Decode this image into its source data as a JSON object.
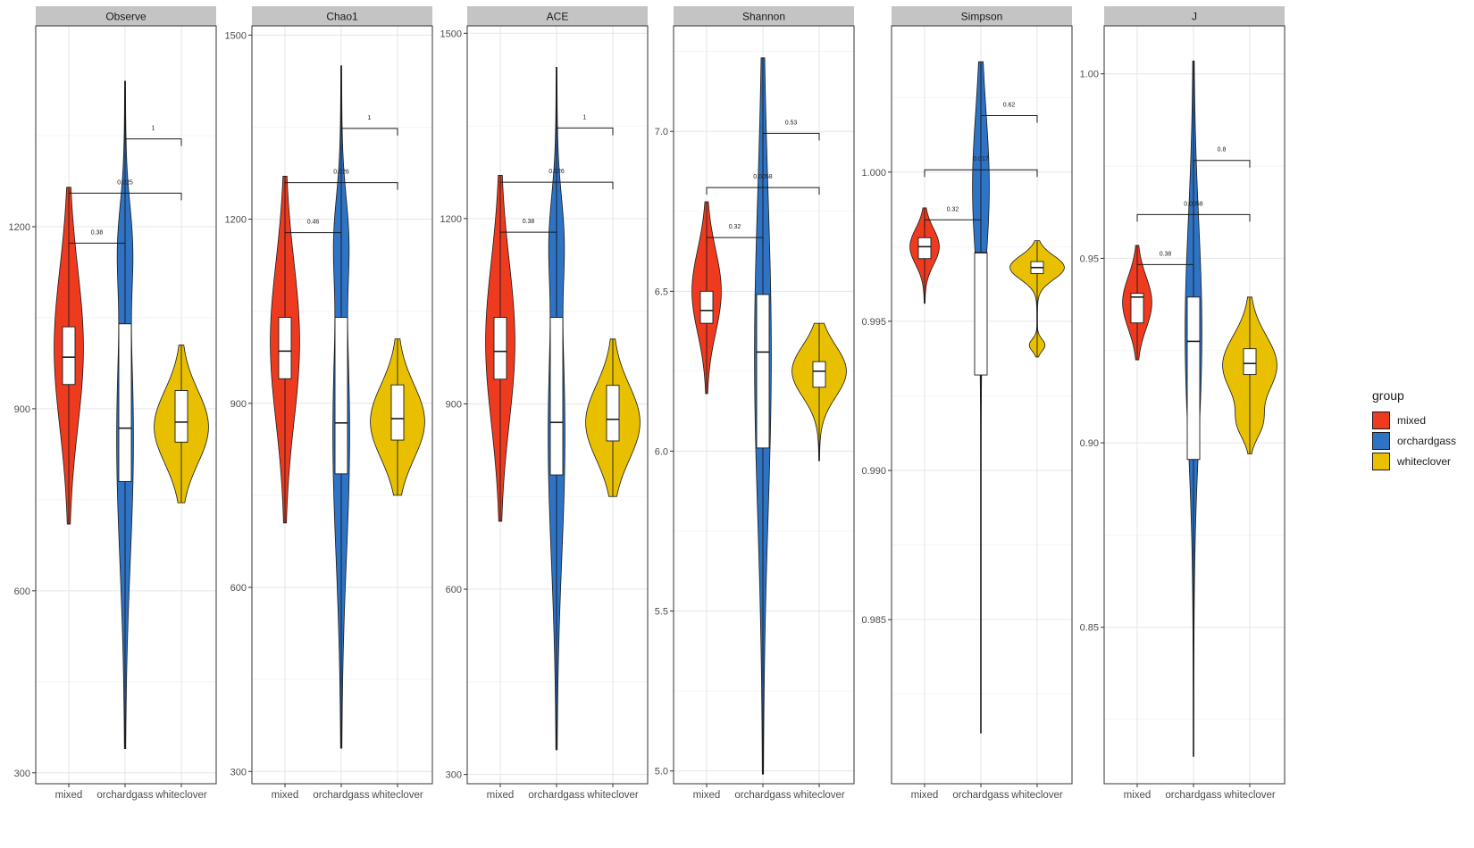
{
  "chart_data": {
    "type": "violin",
    "groups": [
      "mixed",
      "orchardgass",
      "whiteclover"
    ],
    "colors": {
      "mixed": "#EE3B20",
      "orchardgass": "#2E73C4",
      "whiteclover": "#E8C000"
    },
    "legend": {
      "title": "group",
      "placement": "right"
    },
    "grid": true,
    "panels": [
      {
        "title": "Observe",
        "ylim": [
          282,
          1531
        ],
        "yticks": [
          300,
          600,
          900,
          1200
        ],
        "ytick_labels": [
          "300",
          "600",
          "900",
          "1200"
        ],
        "series": [
          {
            "group": "mixed",
            "min": 710,
            "q1": 940,
            "median": 985,
            "q3": 1035,
            "max": 1265,
            "bulges": [
              {
                "y": 1000,
                "w": 1.0,
                "s": 130
              }
            ]
          },
          {
            "group": "orchardgass",
            "min": 340,
            "q1": 780,
            "median": 868,
            "q3": 1040,
            "max": 1440,
            "bulges": [
              {
                "y": 850,
                "w": 0.55,
                "s": 200
              },
              {
                "y": 1170,
                "w": 0.35,
                "s": 70
              }
            ]
          },
          {
            "group": "whiteclover",
            "min": 745,
            "q1": 845,
            "median": 878,
            "q3": 930,
            "max": 1005,
            "bulges": [
              {
                "y": 870,
                "w": 1.0,
                "s": 60
              }
            ]
          }
        ],
        "comparisons": [
          {
            "from": "mixed",
            "to": "orchardgass",
            "label": "0.38"
          },
          {
            "from": "mixed",
            "to": "whiteclover",
            "label": "0.025"
          },
          {
            "from": "orchardgass",
            "to": "whiteclover",
            "label": "1"
          }
        ]
      },
      {
        "title": "Chao1",
        "ylim": [
          280,
          1515
        ],
        "yticks": [
          300,
          600,
          900,
          1200,
          1500
        ],
        "ytick_labels": [
          "300",
          "600",
          "900",
          "1200",
          "1500"
        ],
        "series": [
          {
            "group": "mixed",
            "min": 705,
            "q1": 940,
            "median": 985,
            "q3": 1040,
            "max": 1270,
            "bulges": [
              {
                "y": 1000,
                "w": 1.0,
                "s": 130
              }
            ]
          },
          {
            "group": "orchardgass",
            "min": 338,
            "q1": 785,
            "median": 868,
            "q3": 1040,
            "max": 1450,
            "bulges": [
              {
                "y": 850,
                "w": 0.55,
                "s": 200
              },
              {
                "y": 1170,
                "w": 0.35,
                "s": 70
              }
            ]
          },
          {
            "group": "whiteclover",
            "min": 750,
            "q1": 840,
            "median": 875,
            "q3": 930,
            "max": 1005,
            "bulges": [
              {
                "y": 870,
                "w": 1.0,
                "s": 60
              }
            ]
          }
        ],
        "comparisons": [
          {
            "from": "mixed",
            "to": "orchardgass",
            "label": "0.46"
          },
          {
            "from": "mixed",
            "to": "whiteclover",
            "label": "0.026"
          },
          {
            "from": "orchardgass",
            "to": "whiteclover",
            "label": "1"
          }
        ]
      },
      {
        "title": "ACE",
        "ylim": [
          285,
          1512
        ],
        "yticks": [
          300,
          600,
          900,
          1200,
          1500
        ],
        "ytick_labels": [
          "300",
          "600",
          "900",
          "1200",
          "1500"
        ],
        "series": [
          {
            "group": "mixed",
            "min": 710,
            "q1": 940,
            "median": 985,
            "q3": 1040,
            "max": 1270,
            "bulges": [
              {
                "y": 1000,
                "w": 1.0,
                "s": 130
              }
            ]
          },
          {
            "group": "orchardgass",
            "min": 340,
            "q1": 785,
            "median": 870,
            "q3": 1040,
            "max": 1445,
            "bulges": [
              {
                "y": 850,
                "w": 0.55,
                "s": 200
              },
              {
                "y": 1170,
                "w": 0.35,
                "s": 70
              }
            ]
          },
          {
            "group": "whiteclover",
            "min": 750,
            "q1": 840,
            "median": 875,
            "q3": 930,
            "max": 1005,
            "bulges": [
              {
                "y": 870,
                "w": 1.0,
                "s": 60
              }
            ]
          }
        ],
        "comparisons": [
          {
            "from": "mixed",
            "to": "orchardgass",
            "label": "0.38"
          },
          {
            "from": "mixed",
            "to": "whiteclover",
            "label": "0.026"
          },
          {
            "from": "orchardgass",
            "to": "whiteclover",
            "label": "1"
          }
        ]
      },
      {
        "title": "Shannon",
        "ylim": [
          4.96,
          7.33
        ],
        "yticks": [
          5.0,
          5.5,
          6.0,
          6.5,
          7.0
        ],
        "ytick_labels": [
          "5.0",
          "5.5",
          "6.0",
          "6.5",
          "7.0"
        ],
        "series": [
          {
            "group": "mixed",
            "min": 6.18,
            "q1": 6.4,
            "median": 6.44,
            "q3": 6.5,
            "max": 6.78,
            "bulges": [
              {
                "y": 6.5,
                "w": 1.0,
                "s": 0.13
              }
            ]
          },
          {
            "group": "orchardgass",
            "min": 4.99,
            "q1": 6.01,
            "median": 6.31,
            "q3": 6.49,
            "max": 7.23,
            "bulges": [
              {
                "y": 6.3,
                "w": 0.18,
                "s": 0.5
              }
            ]
          },
          {
            "group": "whiteclover",
            "min": 5.97,
            "q1": 6.2,
            "median": 6.25,
            "q3": 6.28,
            "max": 6.4,
            "bulges": [
              {
                "y": 6.25,
                "w": 1.0,
                "s": 0.08
              }
            ]
          }
        ],
        "comparisons": [
          {
            "from": "mixed",
            "to": "orchardgass",
            "label": "0.32"
          },
          {
            "from": "mixed",
            "to": "whiteclover",
            "label": "0.0058"
          },
          {
            "from": "orchardgass",
            "to": "whiteclover",
            "label": "0.53"
          }
        ]
      },
      {
        "title": "Simpson",
        "ylim": [
          0.9795,
          1.0049
        ],
        "yticks": [
          0.985,
          0.99,
          0.995,
          1.0
        ],
        "ytick_labels": [
          "0.985",
          "0.990",
          "0.995",
          "1.000"
        ],
        "series": [
          {
            "group": "mixed",
            "min": 0.9956,
            "q1": 0.9971,
            "median": 0.9975,
            "q3": 0.9978,
            "max": 0.9988,
            "bulges": [
              {
                "y": 0.9975,
                "w": 1.0,
                "s": 0.0006
              }
            ]
          },
          {
            "group": "orchardgass",
            "min": 0.9812,
            "q1": 0.9932,
            "median": 0.9973,
            "q3": 0.9973,
            "max": 1.0037,
            "bulges": [
              {
                "y": 0.9995,
                "w": 0.1,
                "s": 0.0025
              }
            ]
          },
          {
            "group": "whiteclover",
            "min": 0.9938,
            "q1": 0.9966,
            "median": 0.9968,
            "q3": 0.997,
            "max": 0.9977,
            "bulges": [
              {
                "y": 0.9968,
                "w": 1.0,
                "s": 0.0004
              },
              {
                "y": 0.9942,
                "w": 0.28,
                "s": 0.0002
              }
            ]
          }
        ],
        "comparisons": [
          {
            "from": "mixed",
            "to": "orchardgass",
            "label": "0.32"
          },
          {
            "from": "mixed",
            "to": "whiteclover",
            "label": "0.017"
          },
          {
            "from": "orchardgass",
            "to": "whiteclover",
            "label": "0.62"
          }
        ]
      },
      {
        "title": "J",
        "ylim": [
          0.8076,
          1.013
        ],
        "yticks": [
          0.85,
          0.9,
          0.95,
          1.0
        ],
        "ytick_labels": [
          "0.85",
          "0.90",
          "0.95",
          "1.00"
        ],
        "series": [
          {
            "group": "mixed",
            "min": 0.9225,
            "q1": 0.9325,
            "median": 0.9395,
            "q3": 0.9405,
            "max": 0.9535,
            "bulges": [
              {
                "y": 0.938,
                "w": 1.0,
                "s": 0.007
              }
            ]
          },
          {
            "group": "orchardgass",
            "min": 0.815,
            "q1": 0.8955,
            "median": 0.9275,
            "q3": 0.9395,
            "max": 1.0035,
            "bulges": [
              {
                "y": 0.93,
                "w": 0.2,
                "s": 0.03
              }
            ]
          },
          {
            "group": "whiteclover",
            "min": 0.897,
            "q1": 0.9185,
            "median": 0.9215,
            "q3": 0.9255,
            "max": 0.9395,
            "bulges": [
              {
                "y": 0.921,
                "w": 1.0,
                "s": 0.008
              },
              {
                "y": 0.905,
                "w": 0.35,
                "s": 0.004
              }
            ]
          }
        ],
        "comparisons": [
          {
            "from": "mixed",
            "to": "orchardgass",
            "label": "0.38"
          },
          {
            "from": "mixed",
            "to": "whiteclover",
            "label": "0.0058"
          },
          {
            "from": "orchardgass",
            "to": "whiteclover",
            "label": "0.8"
          }
        ]
      }
    ]
  }
}
